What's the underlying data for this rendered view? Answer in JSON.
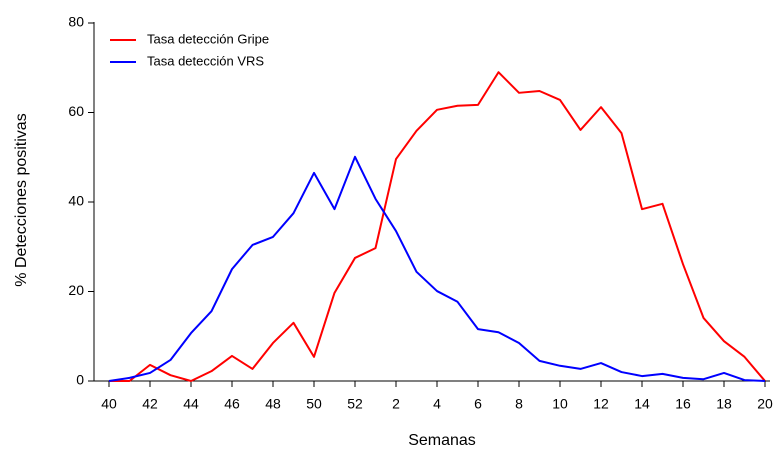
{
  "chart_data": {
    "type": "line",
    "x_label": "Semanas",
    "y_label": "% Detecciones positivas",
    "categories": [
      40,
      null,
      42,
      null,
      44,
      null,
      46,
      null,
      48,
      null,
      50,
      null,
      52,
      null,
      2,
      null,
      4,
      null,
      6,
      null,
      8,
      null,
      10,
      null,
      12,
      null,
      14,
      null,
      16,
      null,
      18,
      null,
      20
    ],
    "series": [
      {
        "name": "Tasa detección Gripe",
        "color": "#ff0000",
        "values": [
          0,
          0,
          3.6,
          1.3,
          0,
          2.2,
          5.6,
          2.7,
          8.5,
          13,
          5.4,
          19.7,
          27.5,
          29.7,
          49.6,
          55.9,
          60.6,
          61.5,
          61.7,
          69,
          64.4,
          64.8,
          62.8,
          56.1,
          61.2,
          55.4,
          38.4,
          39.6,
          26.1,
          14.1,
          8.9,
          5.4,
          0
        ]
      },
      {
        "name": "Tasa detección VRS",
        "color": "#0000ff",
        "values": [
          0,
          0.7,
          1.8,
          4.7,
          10.7,
          15.6,
          25,
          30.4,
          32.2,
          37.5,
          46.5,
          38.4,
          50.1,
          40.7,
          33.5,
          24.4,
          20.1,
          17.7,
          11.6,
          10.9,
          8.5,
          4.5,
          3.4,
          2.7,
          4,
          2,
          1.1,
          1.6,
          0.7,
          0.4,
          1.8,
          0.2,
          0
        ]
      }
    ],
    "ylim": [
      0,
      80
    ],
    "yticks": [
      0,
      20,
      40,
      60,
      80
    ],
    "legend": "upper left"
  }
}
